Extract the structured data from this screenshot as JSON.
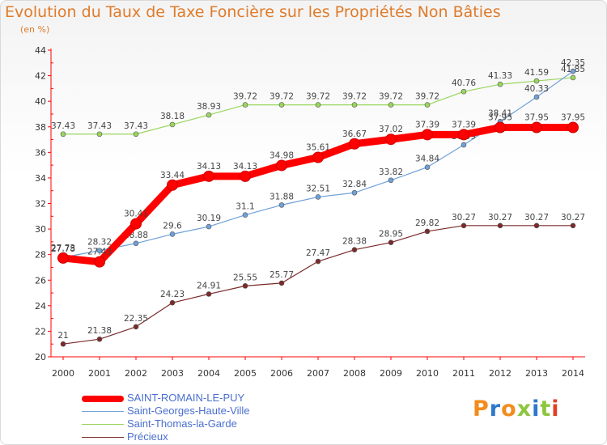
{
  "title": "Evolution du Taux de Taxe Foncière sur les Propriétés Non Bâties",
  "unit_label": "(en %)",
  "logo": "Proxiti",
  "chart_data": {
    "type": "line",
    "x": [
      2000,
      2001,
      2002,
      2003,
      2004,
      2005,
      2006,
      2007,
      2008,
      2009,
      2010,
      2011,
      2012,
      2013,
      2014
    ],
    "ylim": [
      20,
      44
    ],
    "yticks": [
      20,
      22,
      24,
      26,
      28,
      30,
      32,
      34,
      36,
      38,
      40,
      42,
      44
    ],
    "xlabel": "",
    "ylabel": "",
    "grid": false,
    "legend_position": "bottom-left",
    "series": [
      {
        "name": "SAINT-ROMAIN-LE-PUY",
        "color": "#ff0000",
        "values": [
          27.73,
          27.43,
          30.41,
          33.44,
          34.13,
          34.13,
          34.98,
          35.61,
          36.67,
          37.02,
          37.39,
          37.39,
          37.95,
          37.95,
          37.95
        ],
        "labels": [
          "27.73",
          "27.43",
          "30.41",
          "33.44",
          "34.13",
          "34.13",
          "34.98",
          "35.61",
          "36.67",
          "37.02",
          "37.39",
          "37.39",
          "37.95",
          "37.95",
          "37.95"
        ]
      },
      {
        "name": "Saint-Georges-Haute-Ville",
        "color": "#6fa0d8",
        "values": [
          27.78,
          28.32,
          28.88,
          29.6,
          30.19,
          31.1,
          31.88,
          32.51,
          32.84,
          33.82,
          34.84,
          36.59,
          38.41,
          40.33,
          42.35
        ],
        "labels": [
          "27.78",
          "28.32",
          "28.88",
          "29.6",
          "30.19",
          "31.1",
          "31.88",
          "32.51",
          "32.84",
          "33.82",
          "34.84",
          "36.59",
          "38.41",
          "40.33",
          "42.35"
        ]
      },
      {
        "name": "Saint-Thomas-la-Garde",
        "color": "#99d65c",
        "values": [
          37.43,
          37.43,
          37.43,
          38.18,
          38.93,
          39.72,
          39.72,
          39.72,
          39.72,
          39.72,
          39.72,
          40.76,
          41.33,
          41.59,
          41.85
        ],
        "labels": [
          "37.43",
          "37.43",
          "37.43",
          "38.18",
          "38.93",
          "39.72",
          "39.72",
          "39.72",
          "39.72",
          "39.72",
          "39.72",
          "40.76",
          "41.33",
          "41.59",
          "41.85"
        ]
      },
      {
        "name": "Précieux",
        "color": "#7a2a2a",
        "values": [
          21,
          21.38,
          22.35,
          24.23,
          24.91,
          25.55,
          25.77,
          27.47,
          28.38,
          28.95,
          29.82,
          30.27,
          30.27,
          30.27,
          30.27
        ],
        "labels": [
          "21",
          "21.38",
          "22.35",
          "24.23",
          "24.91",
          "25.55",
          "25.77",
          "27.47",
          "28.38",
          "28.95",
          "29.82",
          "30.27",
          "30.27",
          "30.27",
          "30.27"
        ]
      }
    ]
  }
}
